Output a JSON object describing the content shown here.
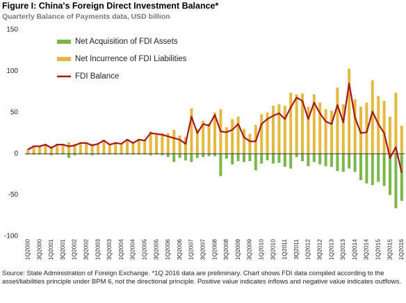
{
  "chart_data": {
    "type": "bar_line",
    "title": "Figure I: China's Foreign Direct Investment Balance*",
    "subtitle": "Quarterly Balance of Payments data, USD billion",
    "source": "Source: State Administration of Foreign Exchange. *1Q 2016 data are preliminary. Chart shows FDI data compiled according to the asset/liabilities principle under BPM 6, not the directional principle. Positive value indicates inflows and negative value indicates outflows.",
    "categories": [
      "1Q2000",
      null,
      "3Q2000",
      null,
      "1Q2001",
      null,
      "3Q2001",
      null,
      "1Q2002",
      null,
      "3Q2002",
      null,
      "1Q2003",
      null,
      "3Q2003",
      null,
      "1Q2004",
      null,
      "3Q2004",
      null,
      "1Q2005",
      null,
      "3Q2005",
      null,
      "1Q2006",
      null,
      "3Q2006",
      null,
      "1Q2007",
      null,
      "3Q2007",
      null,
      "1Q2008",
      null,
      "3Q2008",
      null,
      "1Q2009",
      null,
      "3Q2009",
      null,
      "1Q2010",
      null,
      "3Q2010",
      null,
      "1Q2011",
      null,
      "3Q2011",
      null,
      "1Q2012",
      null,
      "3Q2012",
      null,
      "1Q2013",
      null,
      "3Q2013",
      null,
      "1Q2014",
      null,
      "3Q2014",
      null,
      "1Q2015",
      null,
      "3Q2015",
      null,
      "1Q2016"
    ],
    "series": [
      {
        "name": "Net Acquisition of FDI Assets",
        "kind": "bar",
        "color": "#7ab648",
        "values": [
          -1,
          -1,
          -1,
          -1,
          -2,
          -1,
          -1,
          -5,
          -2,
          -1,
          -1,
          -2,
          -1,
          -1,
          -1,
          -1,
          -1,
          -1,
          -1,
          -1,
          -1,
          -2,
          -1,
          -2,
          -4,
          -10,
          -5,
          -8,
          -10,
          -5,
          -4,
          -3,
          -3,
          -27,
          -6,
          -13,
          -9,
          -10,
          -9,
          -20,
          -12,
          -8,
          -12,
          -11,
          -16,
          -18,
          -4,
          -9,
          -15,
          -10,
          -13,
          -15,
          -16,
          -21,
          -22,
          -18,
          -22,
          -32,
          -36,
          -38,
          -34,
          -39,
          -50,
          -66,
          -57
        ]
      },
      {
        "name": "Net Incurrence of FDI Liabilities",
        "kind": "bar",
        "color": "#e3b93f",
        "values": [
          6,
          10,
          10,
          12,
          9,
          12,
          12,
          14,
          12,
          14,
          14,
          12,
          13,
          17,
          12,
          14,
          13,
          18,
          14,
          18,
          17,
          27,
          25,
          25,
          25,
          29,
          22,
          20,
          55,
          30,
          40,
          37,
          50,
          54,
          32,
          42,
          45,
          30,
          24,
          35,
          48,
          50,
          58,
          60,
          58,
          74,
          72,
          73,
          57,
          72,
          62,
          54,
          52,
          80,
          60,
          103,
          66,
          57,
          62,
          89,
          70,
          64,
          45,
          74,
          34
        ]
      },
      {
        "name": "FDI Balance",
        "kind": "line",
        "color": "#a8141b",
        "values": [
          5,
          9,
          9,
          11,
          7,
          11,
          11,
          9,
          10,
          13,
          13,
          10,
          12,
          16,
          11,
          13,
          12,
          17,
          13,
          17,
          16,
          25,
          24,
          23,
          21,
          19,
          17,
          12,
          45,
          25,
          36,
          34,
          47,
          27,
          26,
          29,
          36,
          20,
          15,
          15,
          36,
          42,
          46,
          49,
          42,
          56,
          68,
          64,
          42,
          62,
          49,
          39,
          36,
          59,
          38,
          85,
          44,
          25,
          26,
          51,
          36,
          25,
          -5,
          8,
          -23
        ]
      }
    ],
    "ylim": [
      -100,
      150
    ],
    "yticks": [
      150,
      100,
      50,
      0,
      -50,
      -100
    ],
    "grid": false,
    "legend": "upper left"
  }
}
